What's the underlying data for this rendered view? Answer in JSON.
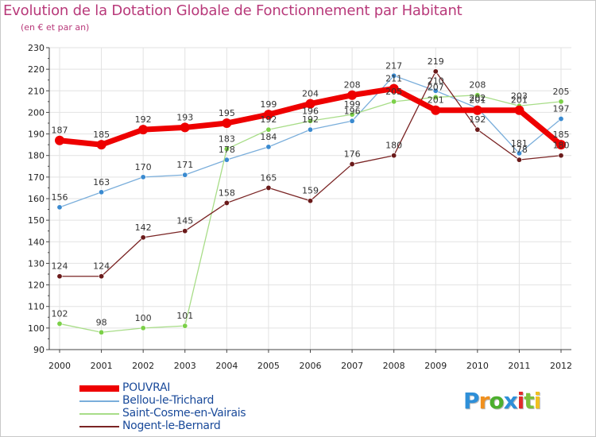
{
  "header": {
    "title": "Evolution de la Dotation Globale de Fonctionnement par Habitant",
    "subtitle": "(en € et par an)"
  },
  "logo": {
    "letters": [
      "P",
      "r",
      "o",
      "x",
      "i",
      "t",
      "i"
    ],
    "colors": [
      "#2e8fd8",
      "#f0901e",
      "#4caf2e",
      "#2e8fd8",
      "#e02a2a",
      "#7cc03a",
      "#f0c020"
    ]
  },
  "chart_data": {
    "type": "line",
    "title": "Evolution de la Dotation Globale de Fonctionnement par Habitant",
    "subtitle": "(en € et par an)",
    "xlabel": "",
    "ylabel": "",
    "categories": [
      "2000",
      "2001",
      "2002",
      "2003",
      "2004",
      "2005",
      "2006",
      "2007",
      "2008",
      "2009",
      "2010",
      "2011",
      "2012"
    ],
    "ylim": [
      90,
      230
    ],
    "yticks": [
      90,
      100,
      110,
      120,
      130,
      140,
      150,
      160,
      170,
      180,
      190,
      200,
      210,
      220,
      230
    ],
    "grid": true,
    "legend_position": "bottom-left",
    "series": [
      {
        "name": "POUVRAI",
        "color": "#ee0000",
        "marker": "#ee0000",
        "width": 7,
        "values": [
          187,
          185,
          192,
          193,
          195,
          199,
          204,
          208,
          211,
          201,
          201,
          201,
          185
        ]
      },
      {
        "name": "Bellou-le-Trichard",
        "color": "#7aaedb",
        "marker": "#3a8ad0",
        "width": 1.3,
        "values": [
          156,
          163,
          170,
          171,
          178,
          184,
          192,
          196,
          217,
          210,
          202,
          181,
          197
        ]
      },
      {
        "name": "Saint-Cosme-en-Vairais",
        "color": "#a8dd88",
        "marker": "#7bd048",
        "width": 1.3,
        "values": [
          102,
          98,
          100,
          101,
          183,
          192,
          196,
          199,
          205,
          207,
          208,
          203,
          205
        ]
      },
      {
        "name": "Nogent-le-Bernard",
        "color": "#7a2424",
        "marker": "#6a1a1a",
        "width": 1.3,
        "values": [
          124,
          124,
          142,
          145,
          158,
          165,
          159,
          176,
          180,
          219,
          192,
          178,
          180
        ]
      }
    ]
  }
}
